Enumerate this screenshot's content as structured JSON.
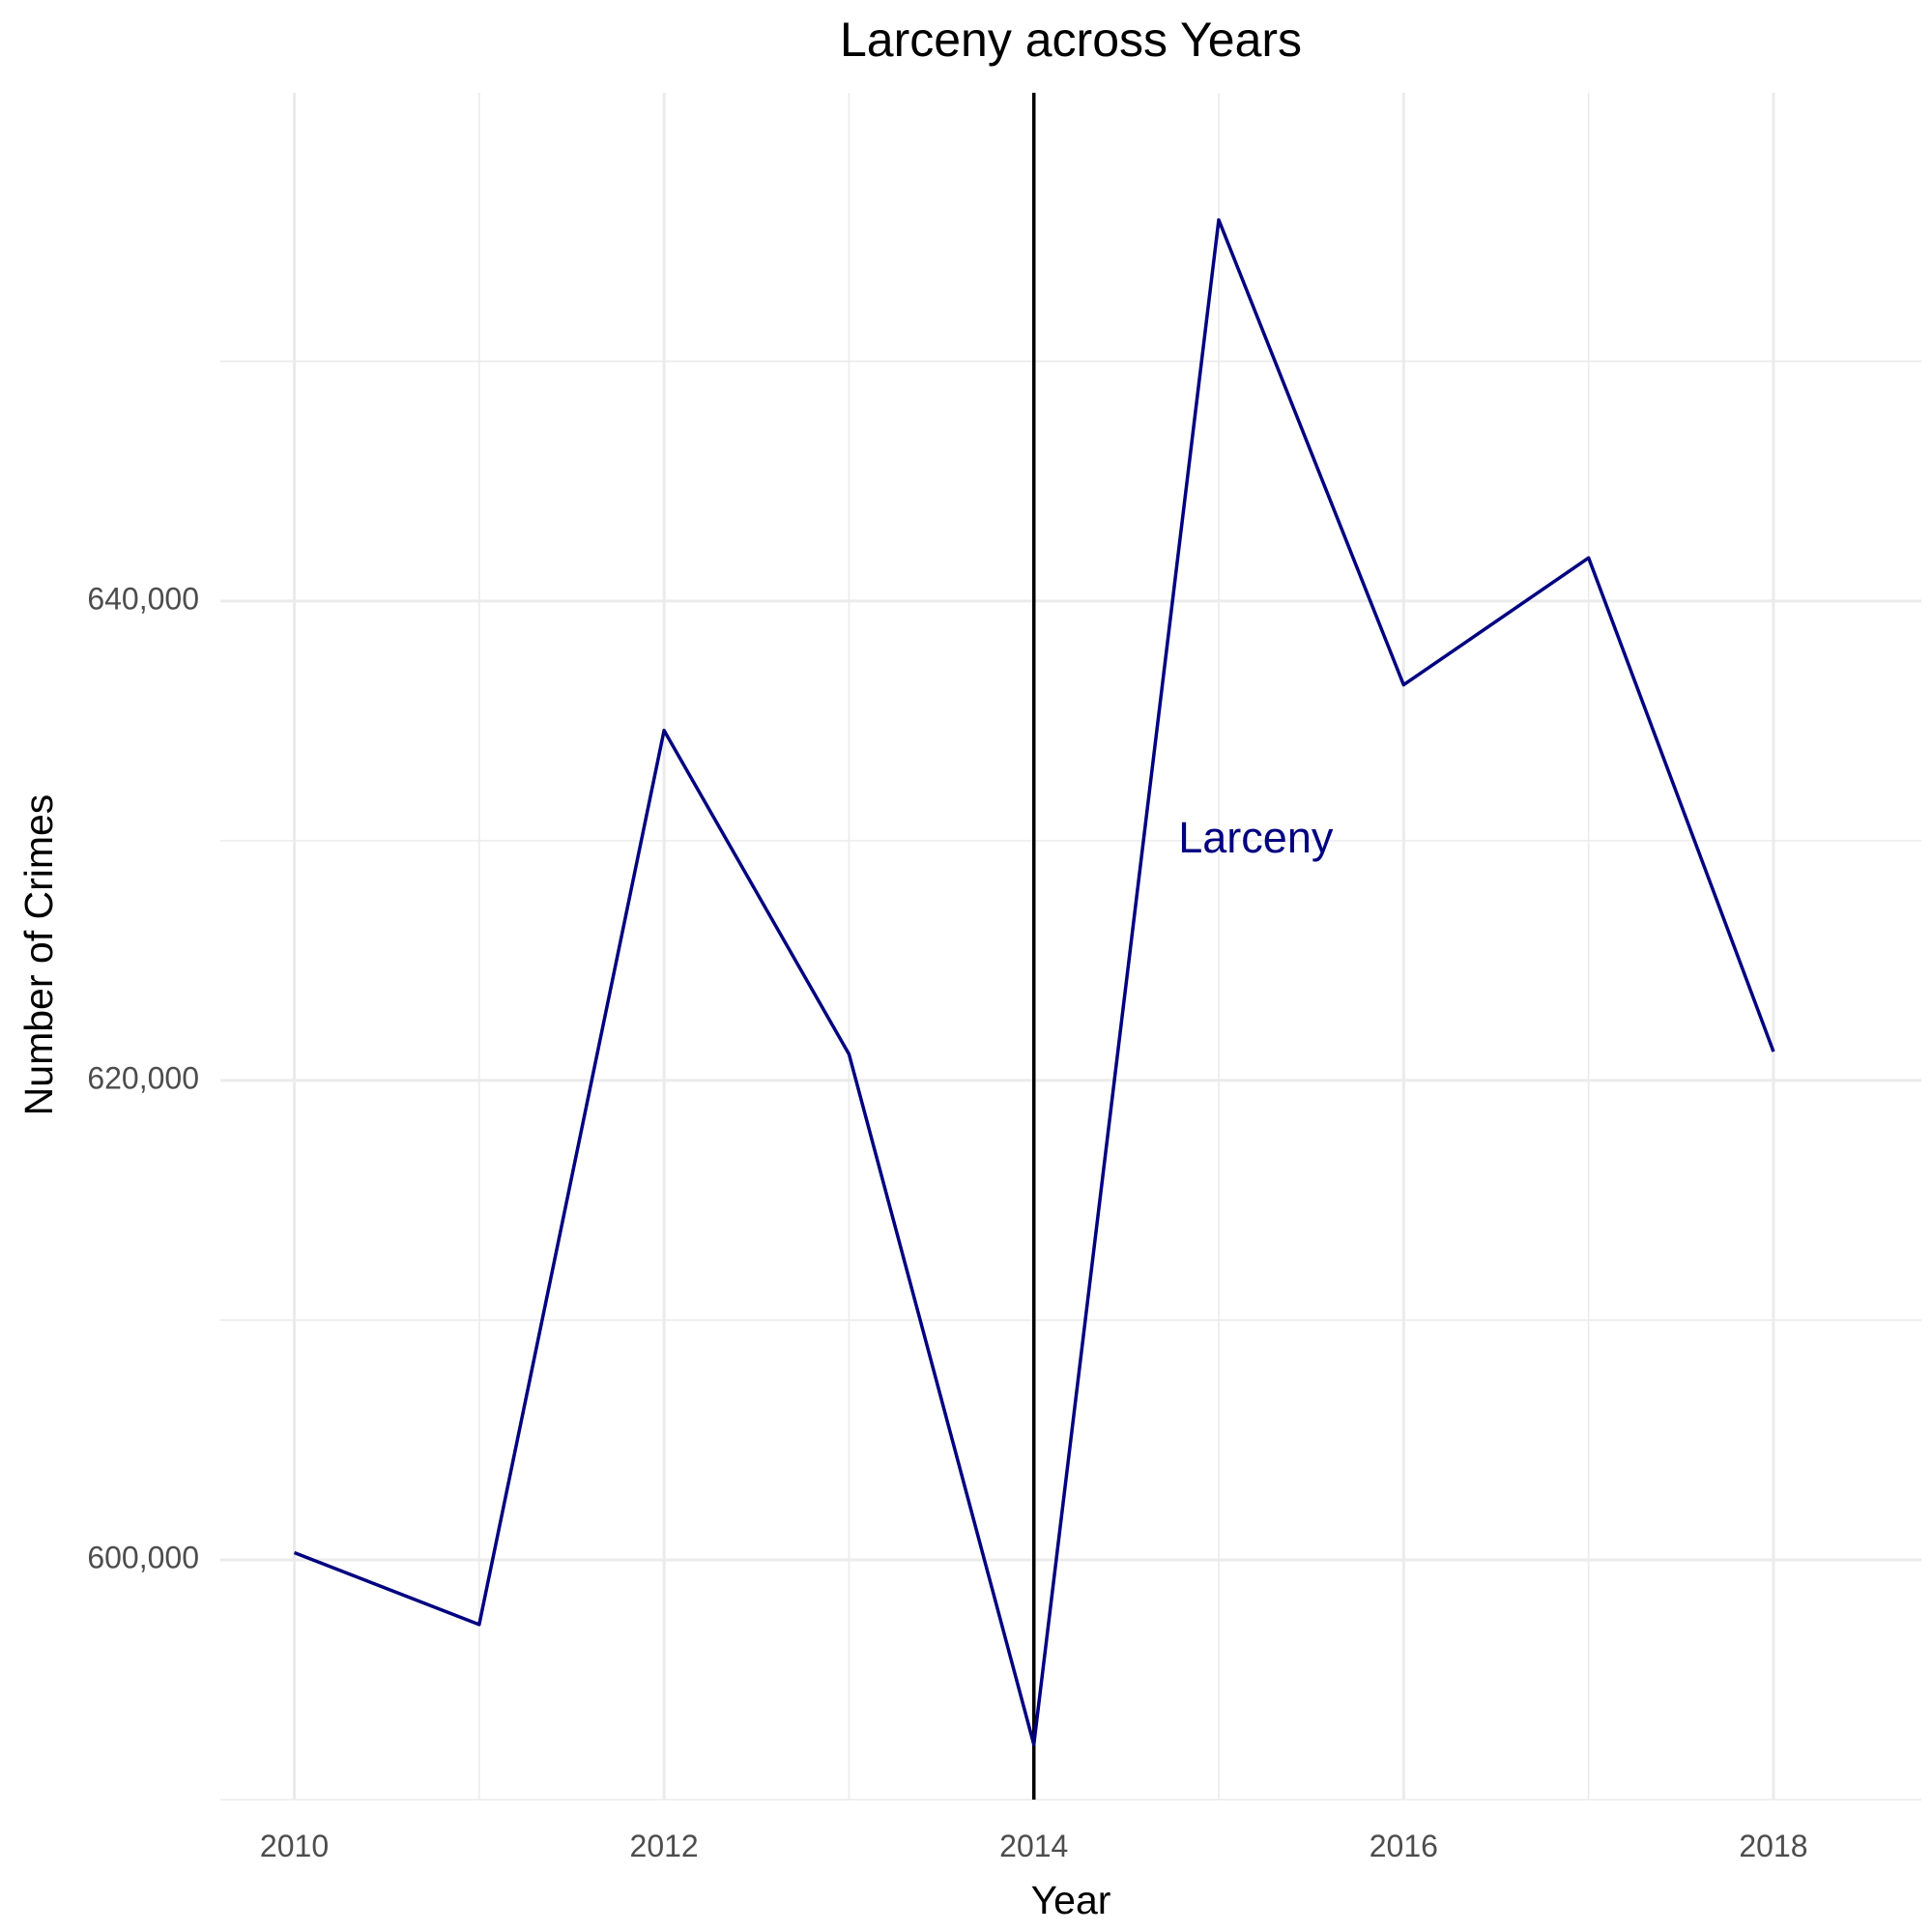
{
  "chart_data": {
    "type": "line",
    "title": "Larceny across Years",
    "xlabel": "Year",
    "ylabel": "Number of Crimes",
    "x": [
      2010,
      2011,
      2012,
      2013,
      2014,
      2015,
      2016,
      2017,
      2018
    ],
    "series": [
      {
        "values": [
          600300,
          597300,
          634600,
          621100,
          592300,
          655900,
          636500,
          641800,
          621200
        ],
        "color": "#000080"
      }
    ],
    "x_ticks": [
      2010,
      2012,
      2014,
      2016,
      2018
    ],
    "x_tick_labels": [
      "2010",
      "2012",
      "2014",
      "2016",
      "2018"
    ],
    "y_ticks": [
      600000,
      620000,
      640000
    ],
    "y_tick_labels": [
      "600,000",
      "620,000",
      "640,000"
    ],
    "xlim": [
      2009.6,
      2018.8
    ],
    "ylim": [
      590000,
      661200
    ],
    "vline": {
      "x": 2014,
      "color": "#000000"
    },
    "annotation": {
      "text": "Larceny",
      "x": 2015.2,
      "y": 630000,
      "color": "#000080"
    },
    "grid": true,
    "legend": "none"
  }
}
